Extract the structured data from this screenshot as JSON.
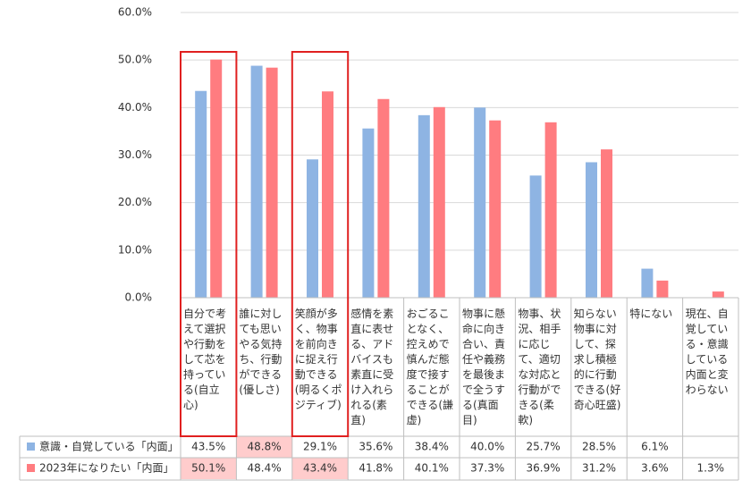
{
  "chart_data": {
    "type": "bar",
    "categories": [
      "自分で考えて選択や行動をして芯を持っている(自立心)",
      "誰に対しても思いやる気持ち、行動ができる(優しさ)",
      "笑顔が多く、物事を前向きに捉え行動できる(明るくポジティブ)",
      "感情を素直に表せる、アドバイスも素直に受け入れられる(素直)",
      "おごることなく、控えめで慎んだ態度で接することができる(謙虚)",
      "物事に懸命に向き合い、責任や義務を最後まで全うする(真面目)",
      "物事、状況、相手に応じて、適切な対応と行動ができる(柔軟)",
      "知らない物事に対して、探求し積極的に行動できる(好奇心旺盛)",
      "特にない",
      "現在、自覚している・意識している内面と変わらない"
    ],
    "series": [
      {
        "name": "意識・自覚している「内面」",
        "color": "#8eb4e3",
        "values": [
          43.5,
          48.8,
          29.1,
          35.6,
          38.4,
          40.0,
          25.7,
          28.5,
          6.1,
          null
        ],
        "value_labels": [
          "43.5%",
          "48.8%",
          "29.1%",
          "35.6%",
          "38.4%",
          "40.0%",
          "25.7%",
          "28.5%",
          "6.1%",
          null
        ]
      },
      {
        "name": "2023年になりたい「内面」",
        "color": "#ff7c80",
        "values": [
          50.1,
          48.4,
          43.4,
          41.8,
          40.1,
          37.3,
          36.9,
          31.2,
          3.6,
          1.3
        ],
        "value_labels": [
          "50.1%",
          "48.4%",
          "43.4%",
          "41.8%",
          "40.1%",
          "37.3%",
          "36.9%",
          "31.2%",
          "3.6%",
          "1.3%"
        ]
      }
    ],
    "ylim": [
      0,
      60
    ],
    "yticks": [
      {
        "value": 0,
        "label": "0.0%"
      },
      {
        "value": 10,
        "label": "10.0%"
      },
      {
        "value": 20,
        "label": "20.0%"
      },
      {
        "value": 30,
        "label": "30.0%"
      },
      {
        "value": 40,
        "label": "40.0%"
      },
      {
        "value": 50,
        "label": "50.0%"
      },
      {
        "value": 60,
        "label": "60.0%"
      }
    ],
    "grid": true,
    "highlight_columns": [
      0,
      2
    ],
    "highlight_cells": [
      [
        0,
        1
      ],
      [
        1,
        0
      ],
      [
        1,
        2
      ]
    ]
  }
}
